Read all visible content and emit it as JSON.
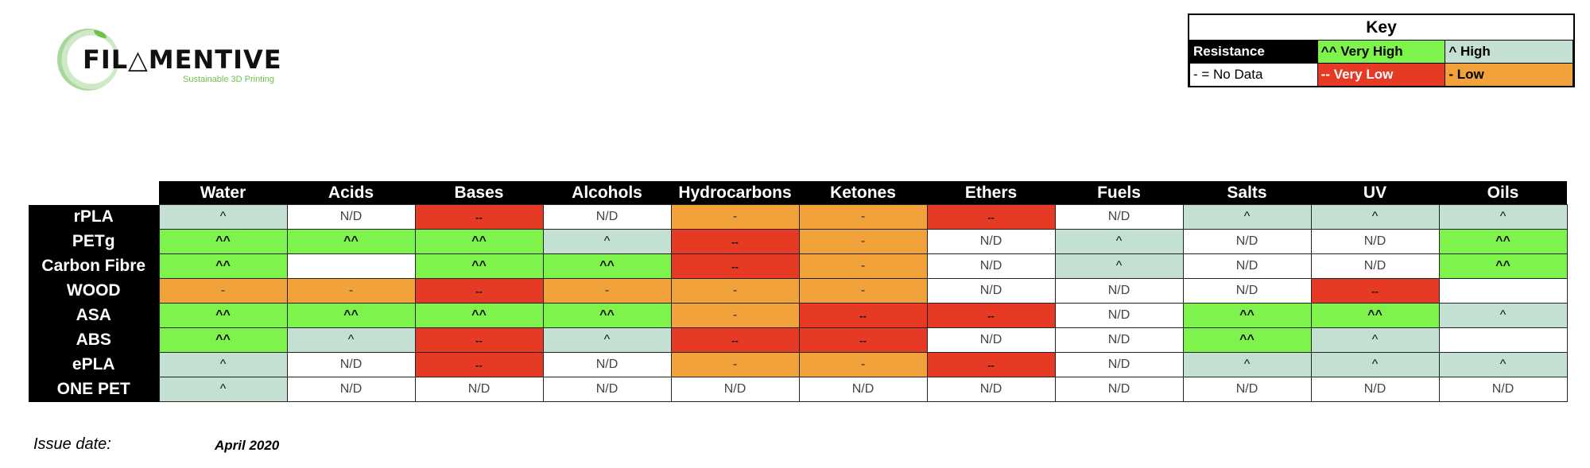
{
  "logo": {
    "wordmark": "FIL△MENTIVE",
    "tagline": "Sustainable 3D Printing"
  },
  "key": {
    "title": "Key",
    "rows": [
      [
        {
          "text": "Resistance",
          "bg": "#000000",
          "fg": "#ffffff",
          "bold": true
        },
        {
          "text": "^^ Very High",
          "bg": "#7ef34c",
          "fg": "#000000",
          "bold": true
        },
        {
          "text": "^ High",
          "bg": "#c3e0d2",
          "fg": "#000000",
          "bold": true
        }
      ],
      [
        {
          "text": "- = No Data",
          "bg": "#ffffff",
          "fg": "#000000",
          "bold": false
        },
        {
          "text": "-- Very Low",
          "bg": "#e63a24",
          "fg": "#ffffff",
          "bold": true
        },
        {
          "text": "- Low",
          "bg": "#f1a23a",
          "fg": "#000000",
          "bold": true
        }
      ]
    ]
  },
  "table": {
    "columns": [
      "Water",
      "Acids",
      "Bases",
      "Alcohols",
      "Hydrocarbons",
      "Ketones",
      "Ethers",
      "Fuels",
      "Salts",
      "UV",
      "Oils"
    ],
    "rows": [
      {
        "material": "rPLA",
        "cells": [
          "^",
          "N/D",
          "--",
          "N/D",
          "-",
          "-",
          "--",
          "N/D",
          "^",
          "^",
          "^"
        ]
      },
      {
        "material": "PETg",
        "cells": [
          "^^",
          "^^",
          "^^",
          "^",
          "--",
          "-",
          "N/D",
          "^",
          "N/D",
          "N/D",
          "^^"
        ]
      },
      {
        "material": "Carbon Fibre",
        "cells": [
          "^^",
          "",
          "^^",
          "^^",
          "--",
          "-",
          "N/D",
          "^",
          "N/D",
          "N/D",
          "^^"
        ]
      },
      {
        "material": "WOOD",
        "cells": [
          "-",
          "-",
          "--",
          "-",
          "-",
          "-",
          "N/D",
          "N/D",
          "N/D",
          "--",
          ""
        ]
      },
      {
        "material": "ASA",
        "cells": [
          "^^",
          "^^",
          "^^",
          "^^",
          "-",
          "--",
          "--",
          "N/D",
          "^^",
          "^^",
          "^"
        ]
      },
      {
        "material": "ABS",
        "cells": [
          "^^",
          "^",
          "--",
          "^",
          "--",
          "--",
          "N/D",
          "N/D",
          "^^",
          "^",
          ""
        ]
      },
      {
        "material": "ePLA",
        "cells": [
          "^",
          "N/D",
          "--",
          "N/D",
          "-",
          "-",
          "--",
          "N/D",
          "^",
          "^",
          "^"
        ]
      },
      {
        "material": "ONE PET",
        "cells": [
          "^",
          "N/D",
          "N/D",
          "N/D",
          "N/D",
          "N/D",
          "N/D",
          "N/D",
          "N/D",
          "N/D",
          "N/D"
        ]
      }
    ]
  },
  "footer": {
    "issue_label": "Issue date:",
    "issue_value": "April 2020"
  }
}
